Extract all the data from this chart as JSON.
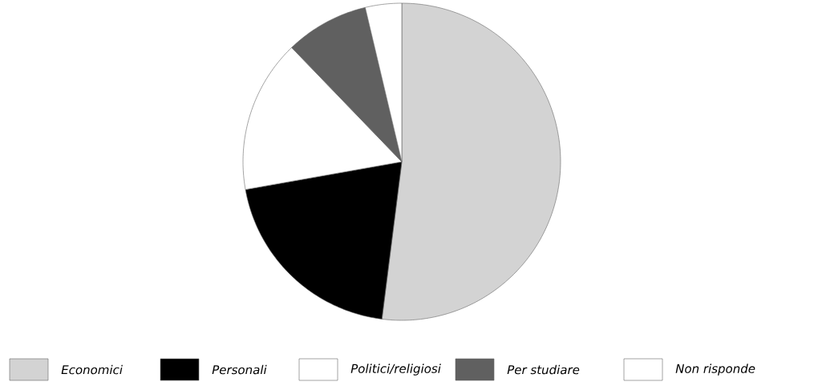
{
  "chart_data": {
    "type": "pie",
    "categories": [
      "Economici",
      "Personali",
      "Politici/religiosi",
      "Per studiare",
      "Non risponde"
    ],
    "values": [
      52,
      20.2,
      15.6,
      8.5,
      3.7
    ],
    "colors": [
      "#d3d3d3",
      "#000000",
      "#ffffff",
      "#606060",
      "#ffffff"
    ],
    "legend": "bottom"
  }
}
